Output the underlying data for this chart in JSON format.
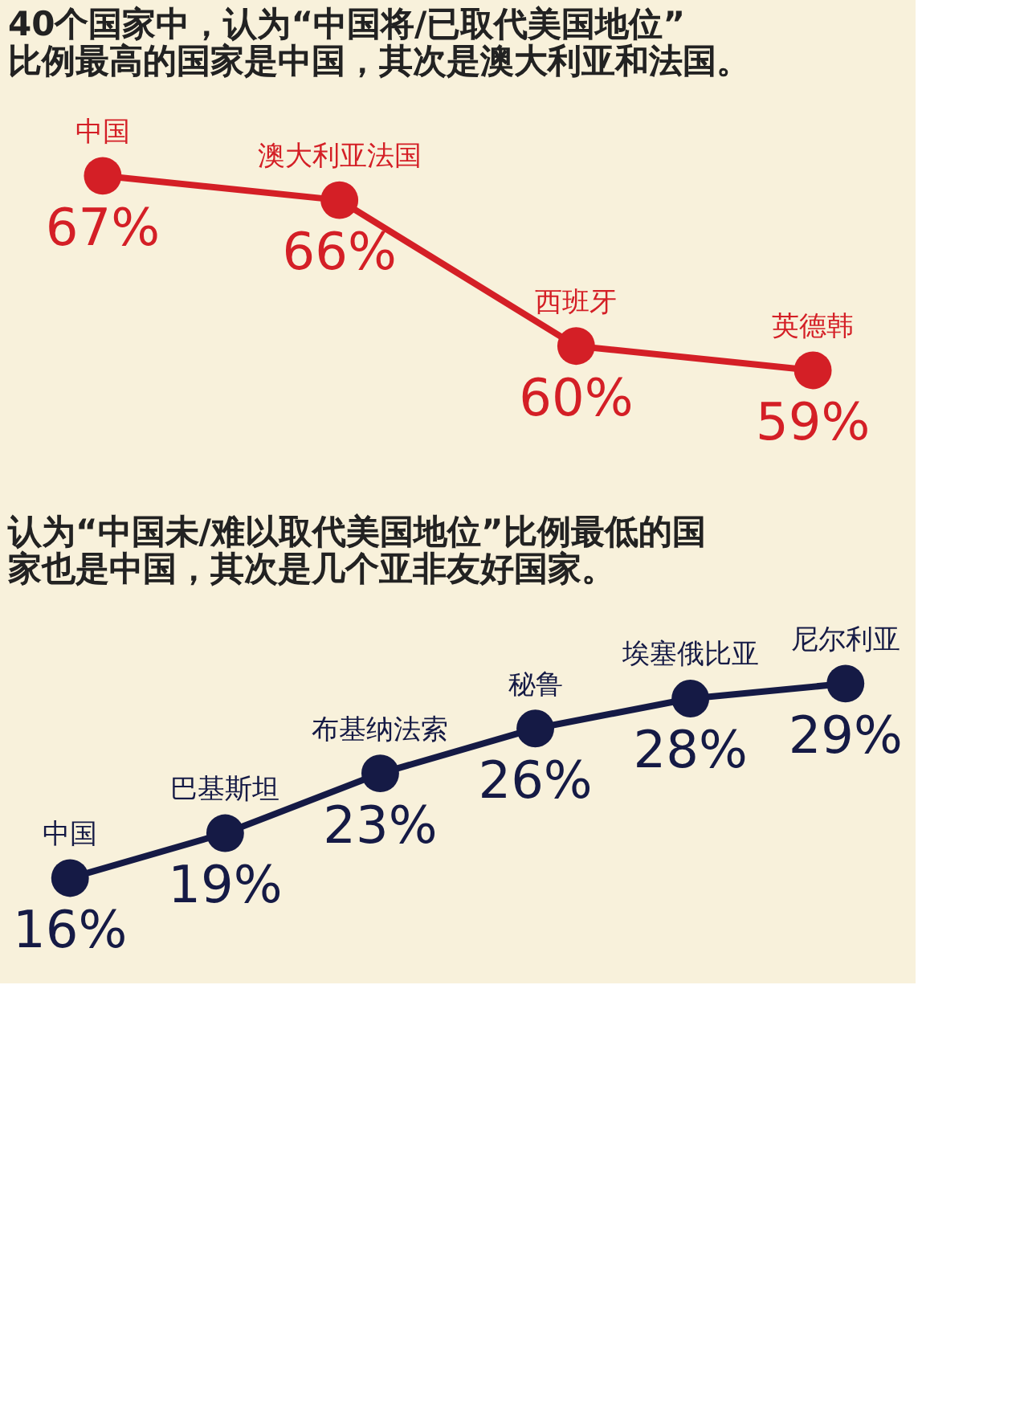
{
  "chart_data": [
    {
      "type": "line",
      "title": "40个国家中，认为“中国将/已取代美国地位”比例最高的国家是中国，其次是澳大利亚和法国。",
      "categories": [
        "中国",
        "澳大利亚法国",
        "西班牙",
        "英德韩"
      ],
      "values": [
        67,
        66,
        60,
        59
      ],
      "value_labels": [
        "67%",
        "66%",
        "60%",
        "59%"
      ],
      "color": "#d41f26",
      "marker": "circle"
    },
    {
      "type": "line",
      "title": "认为“中国未/难以取代美国地位”比例最低的国家也是中国，其次是几个亚非友好国家。",
      "categories": [
        "中国",
        "巴基斯坦",
        "布基纳法索",
        "秘鲁",
        "埃塞俄比亚",
        "尼尔利亚"
      ],
      "values": [
        16,
        19,
        23,
        26,
        28,
        29
      ],
      "value_labels": [
        "16%",
        "19%",
        "23%",
        "26%",
        "28%",
        "29%"
      ],
      "color": "#151a45",
      "marker": "circle"
    }
  ]
}
